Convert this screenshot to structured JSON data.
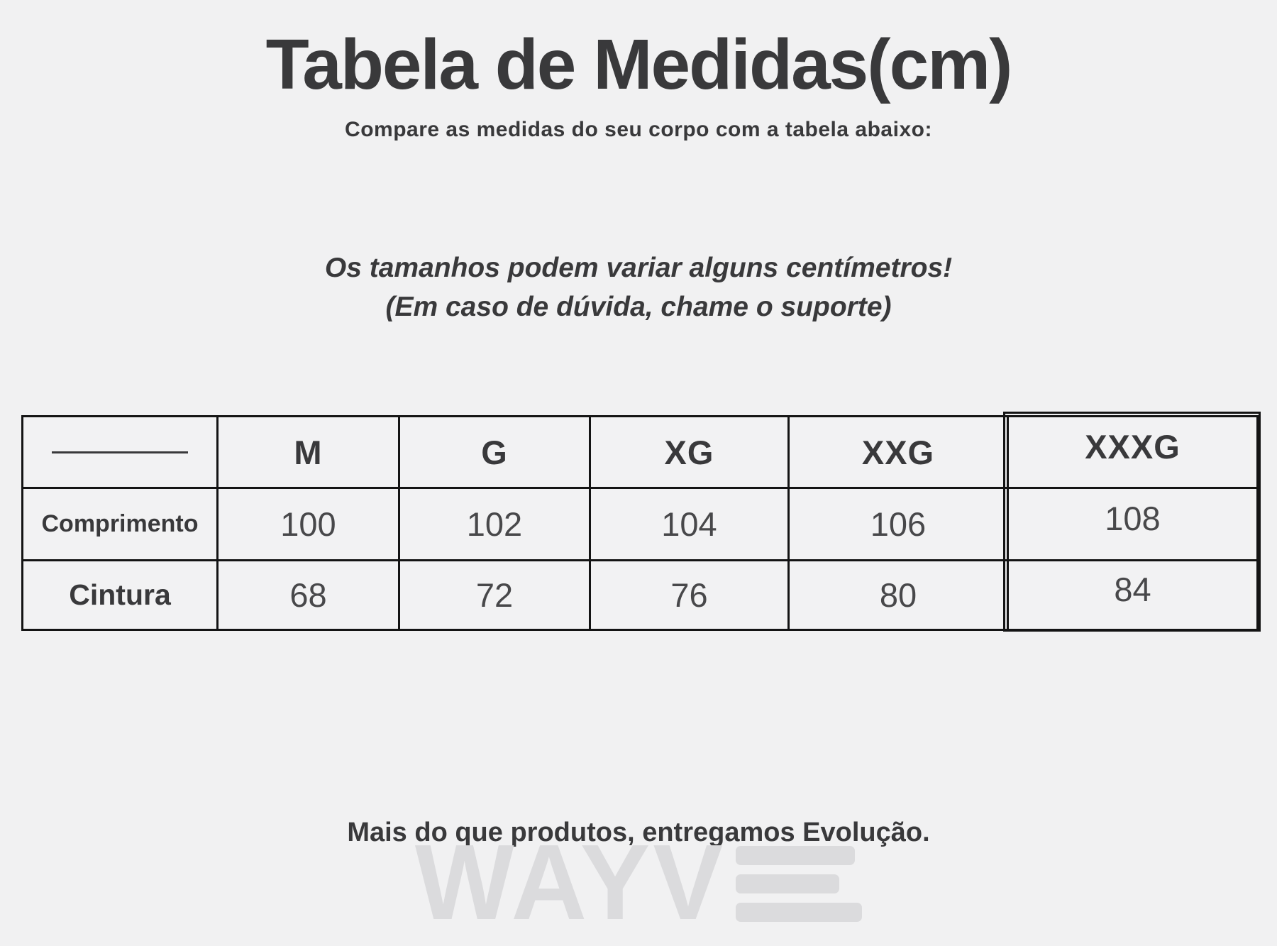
{
  "page": {
    "background": "#f1f1f2",
    "text_color": "#39393b",
    "border_color": "#141414",
    "watermark_color": "#dbdbdd"
  },
  "header": {
    "title": "Tabela de Medidas(cm)",
    "subtitle": "Compare as medidas do seu corpo com a tabela abaixo:"
  },
  "notice": {
    "line1": "Os tamanhos podem variar alguns centímetros!",
    "line2": "(Em caso de dúvida, chame o suporte)"
  },
  "chart_data": {
    "type": "table",
    "title": "Tabela de Medidas(cm)",
    "unit": "cm",
    "columns": [
      "",
      "M",
      "G",
      "XG",
      "XXG",
      "XXXG"
    ],
    "rows": [
      {
        "label": "Comprimento",
        "values": [
          100,
          102,
          104,
          106,
          108
        ]
      },
      {
        "label": "Cintura",
        "values": [
          68,
          72,
          76,
          80,
          84
        ]
      }
    ]
  },
  "footer": {
    "tagline": "Mais do que produtos, entregamos Evolução.",
    "watermark": "WAYVE",
    "watermark_wayv": "WAYV"
  }
}
